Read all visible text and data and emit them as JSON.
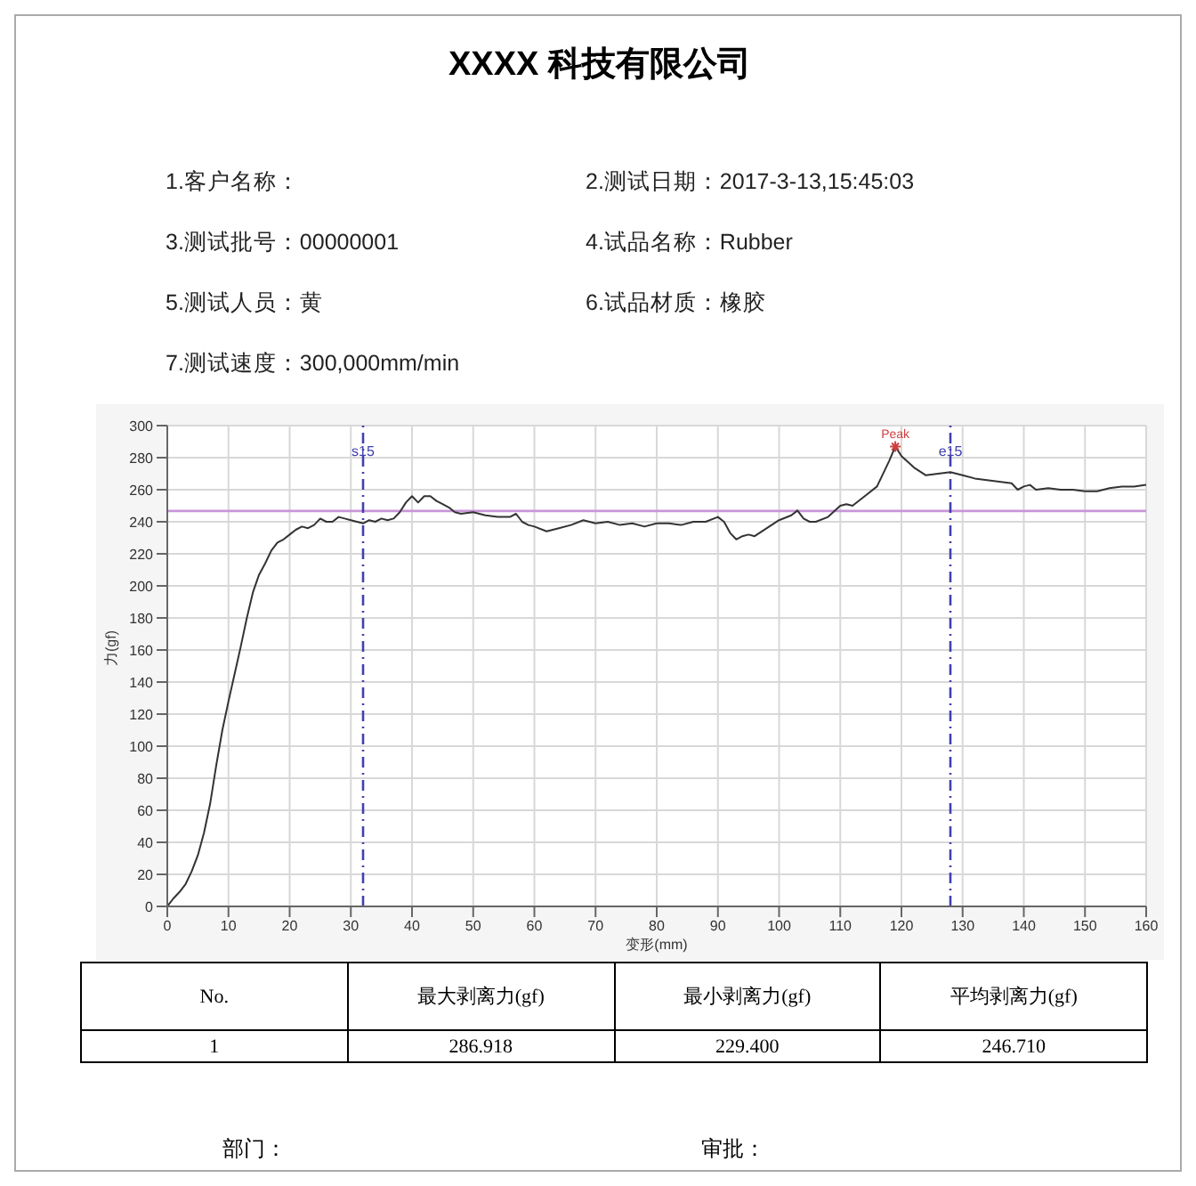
{
  "chart_data": {
    "type": "line",
    "title": "XXXX 科技有限公司",
    "xlabel": "变形(mm)",
    "ylabel": "力(gf)",
    "annotations": [
      "1.客户名称：",
      "2.测试日期：2017-3-13,15:45:03",
      "3.测试批号：00000001",
      "4.试品名称：Rubber",
      "5.测试人员：黄",
      "6.试品材质：橡胶",
      "7.测试速度：300,000mm/min",
      "No.",
      "最大剥离力(gf)",
      "最小剥离力(gf)",
      "平均剥离力(gf)",
      "1",
      "286.918",
      "229.400",
      "246.710",
      "部门：",
      "审批：",
      {
        "text": "Peak",
        "x": 119,
        "y": 286.918
      }
    ],
    "x": [
      0,
      1,
      2,
      3,
      4,
      5,
      6,
      7,
      8,
      9,
      10,
      11,
      12,
      13,
      14,
      15,
      16,
      17,
      18,
      19,
      20,
      21,
      22,
      23,
      24,
      25,
      26,
      27,
      28,
      29,
      30,
      31,
      32,
      33,
      34,
      35,
      36,
      37,
      38,
      39,
      40,
      41,
      42,
      43,
      44,
      45,
      46,
      47,
      48,
      50,
      52,
      54,
      56,
      57,
      58,
      59,
      60,
      62,
      64,
      66,
      68,
      70,
      72,
      74,
      76,
      78,
      80,
      82,
      84,
      86,
      88,
      90,
      91,
      92,
      93,
      94,
      95,
      96,
      98,
      100,
      102,
      103,
      104,
      105,
      106,
      108,
      110,
      111,
      112,
      114,
      116,
      118,
      119,
      120,
      122,
      124,
      126,
      128,
      130,
      132,
      134,
      136,
      138,
      139,
      140,
      141,
      142,
      144,
      146,
      148,
      150,
      152,
      154,
      156,
      158,
      160
    ],
    "series": [
      {
        "color": "#333333",
        "values": [
          0,
          5,
          9,
          14,
          22,
          32,
          46,
          64,
          88,
          110,
          128,
          145,
          162,
          180,
          196,
          207,
          214,
          222,
          227,
          229,
          232,
          235,
          237,
          236,
          238,
          242,
          240,
          240,
          243,
          242,
          241,
          240,
          239,
          241,
          240,
          242,
          241,
          242,
          246,
          252,
          256,
          252,
          256,
          256,
          253,
          251,
          249,
          246,
          245,
          246,
          244,
          243,
          243,
          245,
          240,
          238,
          237,
          234,
          236,
          238,
          241,
          239,
          240,
          238,
          239,
          237,
          239,
          239,
          238,
          240,
          240,
          243,
          240,
          233,
          229,
          231,
          232,
          231,
          236,
          241,
          244,
          247,
          242,
          240,
          240,
          243,
          250,
          251,
          250,
          256,
          262,
          278,
          287,
          281,
          274,
          269,
          270,
          271,
          269,
          267,
          266,
          265,
          264,
          260,
          262,
          263,
          260,
          261,
          260,
          260,
          259,
          259,
          261,
          262,
          262,
          263
        ]
      }
    ],
    "xlim": [
      0,
      160
    ],
    "xticks": [
      0,
      10,
      20,
      30,
      40,
      50,
      60,
      70,
      80,
      90,
      100,
      110,
      120,
      130,
      140,
      150,
      160
    ],
    "ylim": [
      0,
      300
    ],
    "yticks": [
      0,
      20,
      40,
      60,
      80,
      100,
      120,
      140,
      160,
      180,
      200,
      220,
      240,
      260,
      280,
      300
    ],
    "ref_lines": [
      {
        "axis": "y",
        "value": 246.71,
        "color": "#c896d8",
        "line_style": "solid"
      },
      {
        "axis": "x",
        "value": 32,
        "label": "s15",
        "color": "#4040b0",
        "line_style": "dashed"
      },
      {
        "axis": "x",
        "value": 128,
        "label": "e15",
        "color": "#4040b0",
        "line_style": "dashed"
      }
    ],
    "grid": true,
    "legend": false,
    "marker": "none",
    "line_style": "solid"
  }
}
